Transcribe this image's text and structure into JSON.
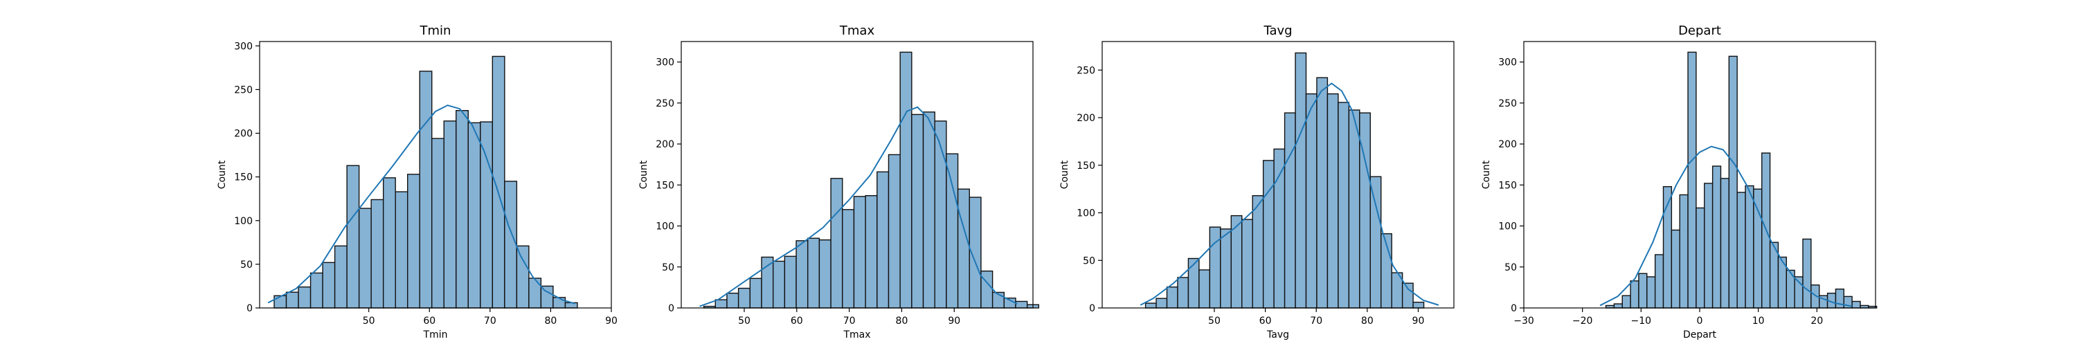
{
  "colors": {
    "bar_fill": "#86b2d4",
    "bar_edge": "#111111",
    "kde_line": "#1f77b4"
  },
  "chart_data": [
    {
      "type": "bar",
      "title": "Tmin",
      "xlabel": "Tmin",
      "ylabel": "Count",
      "xlim": [
        32,
        90
      ],
      "ylim": [
        0,
        305
      ],
      "xticks": [
        50,
        60,
        70,
        80,
        90
      ],
      "yticks": [
        0,
        50,
        100,
        150,
        200,
        250,
        300
      ],
      "bin_start": 34.4,
      "bin_width": 2.0,
      "values": [
        14,
        18,
        24,
        40,
        52,
        71,
        163,
        114,
        124,
        149,
        133,
        153,
        271,
        194,
        214,
        226,
        212,
        213,
        288,
        145,
        71,
        34,
        25,
        12,
        6
      ],
      "kde": [
        [
          33.4,
          6
        ],
        [
          38,
          22
        ],
        [
          42,
          48
        ],
        [
          46,
          92
        ],
        [
          50,
          128
        ],
        [
          54,
          163
        ],
        [
          58,
          200
        ],
        [
          61,
          225
        ],
        [
          63,
          232
        ],
        [
          65,
          228
        ],
        [
          67,
          210
        ],
        [
          69,
          180
        ],
        [
          71,
          140
        ],
        [
          73,
          95
        ],
        [
          75,
          60
        ],
        [
          77,
          36
        ],
        [
          79,
          20
        ],
        [
          82,
          9
        ],
        [
          84,
          5
        ]
      ]
    },
    {
      "type": "bar",
      "title": "Tmax",
      "xlabel": "Tmax",
      "ylabel": "Count",
      "xlim": [
        38,
        105
      ],
      "ylim": [
        0,
        325
      ],
      "xticks": [
        50,
        60,
        70,
        80,
        90
      ],
      "yticks": [
        0,
        50,
        100,
        150,
        200,
        250,
        300
      ],
      "bin_start": 42.3,
      "bin_width": 2.2,
      "values": [
        2,
        10,
        18,
        24,
        36,
        62,
        57,
        63,
        82,
        85,
        83,
        158,
        120,
        136,
        137,
        166,
        187,
        312,
        236,
        239,
        228,
        188,
        145,
        135,
        45,
        19,
        12,
        8,
        4
      ],
      "kde": [
        [
          41.5,
          2
        ],
        [
          45,
          10
        ],
        [
          50,
          32
        ],
        [
          55,
          54
        ],
        [
          60,
          74
        ],
        [
          65,
          98
        ],
        [
          70,
          132
        ],
        [
          74,
          162
        ],
        [
          78,
          205
        ],
        [
          81,
          240
        ],
        [
          83,
          245
        ],
        [
          85,
          232
        ],
        [
          87,
          205
        ],
        [
          89,
          165
        ],
        [
          91,
          115
        ],
        [
          93,
          72
        ],
        [
          95,
          40
        ],
        [
          98,
          18
        ],
        [
          102,
          5
        ]
      ]
    },
    {
      "type": "bar",
      "title": "Tavg",
      "xlabel": "Tavg",
      "ylabel": "Count",
      "xlim": [
        28,
        97
      ],
      "ylim": [
        0,
        280
      ],
      "xticks": [
        50,
        60,
        70,
        80,
        90
      ],
      "yticks": [
        0,
        50,
        100,
        150,
        200,
        250
      ],
      "bin_start": 36.5,
      "bin_width": 2.1,
      "values": [
        5,
        10,
        22,
        32,
        52,
        40,
        85,
        83,
        97,
        93,
        118,
        155,
        167,
        205,
        268,
        225,
        242,
        225,
        216,
        208,
        205,
        138,
        78,
        37,
        26,
        6
      ],
      "kde": [
        [
          35.5,
          3
        ],
        [
          38,
          10
        ],
        [
          42,
          26
        ],
        [
          46,
          46
        ],
        [
          50,
          68
        ],
        [
          54,
          84
        ],
        [
          58,
          104
        ],
        [
          62,
          132
        ],
        [
          66,
          172
        ],
        [
          69,
          210
        ],
        [
          71,
          228
        ],
        [
          73,
          236
        ],
        [
          75,
          228
        ],
        [
          77,
          208
        ],
        [
          79,
          168
        ],
        [
          81,
          122
        ],
        [
          83,
          80
        ],
        [
          85,
          45
        ],
        [
          88,
          20
        ],
        [
          91,
          8
        ],
        [
          94,
          3
        ]
      ]
    },
    {
      "type": "bar",
      "title": "Depart",
      "xlabel": "Depart",
      "ylabel": "Count",
      "xlim": [
        -30,
        30
      ],
      "ylim": [
        0,
        325
      ],
      "xticks": [
        -30,
        -20,
        -10,
        0,
        10,
        20
      ],
      "yticks": [
        0,
        50,
        100,
        150,
        200,
        250,
        300
      ],
      "bin_start": -16.0,
      "bin_width": 1.4,
      "values": [
        3,
        5,
        15,
        33,
        42,
        38,
        65,
        148,
        95,
        138,
        312,
        122,
        152,
        173,
        158,
        307,
        141,
        149,
        145,
        189,
        80,
        62,
        46,
        38,
        84,
        28,
        15,
        18,
        23,
        14,
        8,
        3,
        2
      ],
      "kde": [
        [
          -17,
          3
        ],
        [
          -14,
          14
        ],
        [
          -11,
          36
        ],
        [
          -8,
          80
        ],
        [
          -6,
          118
        ],
        [
          -4,
          150
        ],
        [
          -2,
          175
        ],
        [
          0,
          190
        ],
        [
          2,
          197
        ],
        [
          4,
          193
        ],
        [
          6,
          175
        ],
        [
          8,
          150
        ],
        [
          10,
          118
        ],
        [
          12,
          84
        ],
        [
          14,
          58
        ],
        [
          16,
          38
        ],
        [
          18,
          24
        ],
        [
          20,
          14
        ],
        [
          23,
          6
        ],
        [
          26,
          2
        ]
      ]
    }
  ]
}
